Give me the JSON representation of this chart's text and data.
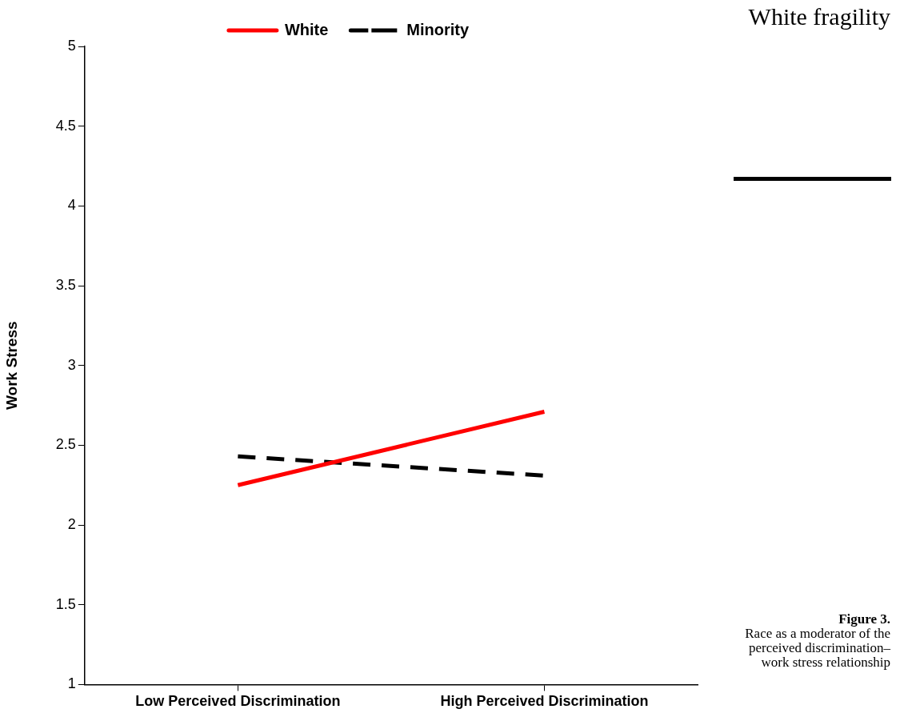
{
  "chart_data": {
    "type": "line",
    "ylabel": "Work Stress",
    "categories": [
      "Low Perceived Discrimination",
      "High Perceived Discrimination"
    ],
    "series": [
      {
        "name": "White",
        "color": "#ff0000",
        "values": [
          2.25,
          2.71
        ],
        "line_style": "solid"
      },
      {
        "name": "Minority",
        "color": "#000000",
        "values": [
          2.43,
          2.31
        ],
        "line_style": "dashed"
      }
    ],
    "ylim": [
      1,
      5
    ],
    "yticks": [
      1,
      1.5,
      2,
      2.5,
      3,
      3.5,
      4,
      4.5,
      5
    ],
    "grid": false,
    "legend": "top",
    "marker": "none",
    "annotations": [
      "White fragility",
      "Figure 3.",
      "Race as a moderator of the perceived discrimination–work stress relationship"
    ]
  }
}
